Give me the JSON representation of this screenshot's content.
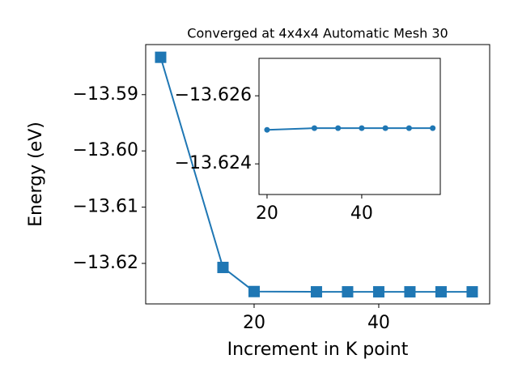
{
  "chart_data": [
    {
      "type": "line",
      "title": "Converged at 4x4x4 Automatic Mesh 30",
      "x_label": "Increment in K point",
      "y_label": "Energy (eV)",
      "x": [
        5,
        15,
        20,
        30,
        35,
        40,
        45,
        50,
        55
      ],
      "series": [
        {
          "color": "#1f77b4",
          "marker": "square",
          "values": [
            -13.58336,
            -13.62072,
            -13.625,
            -13.62505,
            -13.62505,
            -13.62505,
            -13.62505,
            -13.62505,
            -13.62505
          ]
        }
      ],
      "xlim": [
        2.6,
        57.8
      ],
      "ylim": [
        -13.6272,
        -13.5811
      ],
      "xticks": [
        20,
        40
      ],
      "yticks": [
        {
          "value": -13.59,
          "label": "−13.59"
        },
        {
          "value": -13.6,
          "label": "−13.60"
        },
        {
          "value": -13.61,
          "label": "−13.61"
        },
        {
          "value": -13.62,
          "label": "−13.62"
        }
      ]
    },
    {
      "type": "line",
      "x": [
        20,
        30,
        35,
        40,
        45,
        50,
        55
      ],
      "series": [
        {
          "color": "#1f77b4",
          "marker": "circle",
          "values": [
            -13.625,
            -13.62505,
            -13.62505,
            -13.62505,
            -13.62505,
            -13.62505,
            -13.62505
          ]
        }
      ],
      "xlim": [
        18.3,
        56.6
      ],
      "ylim": [
        -13.6231,
        -13.6271
      ],
      "xticks": [
        20,
        40
      ],
      "yticks": [
        {
          "value": -13.626,
          "label": "−13.626"
        },
        {
          "value": -13.624,
          "label": "−13.624"
        }
      ]
    }
  ]
}
